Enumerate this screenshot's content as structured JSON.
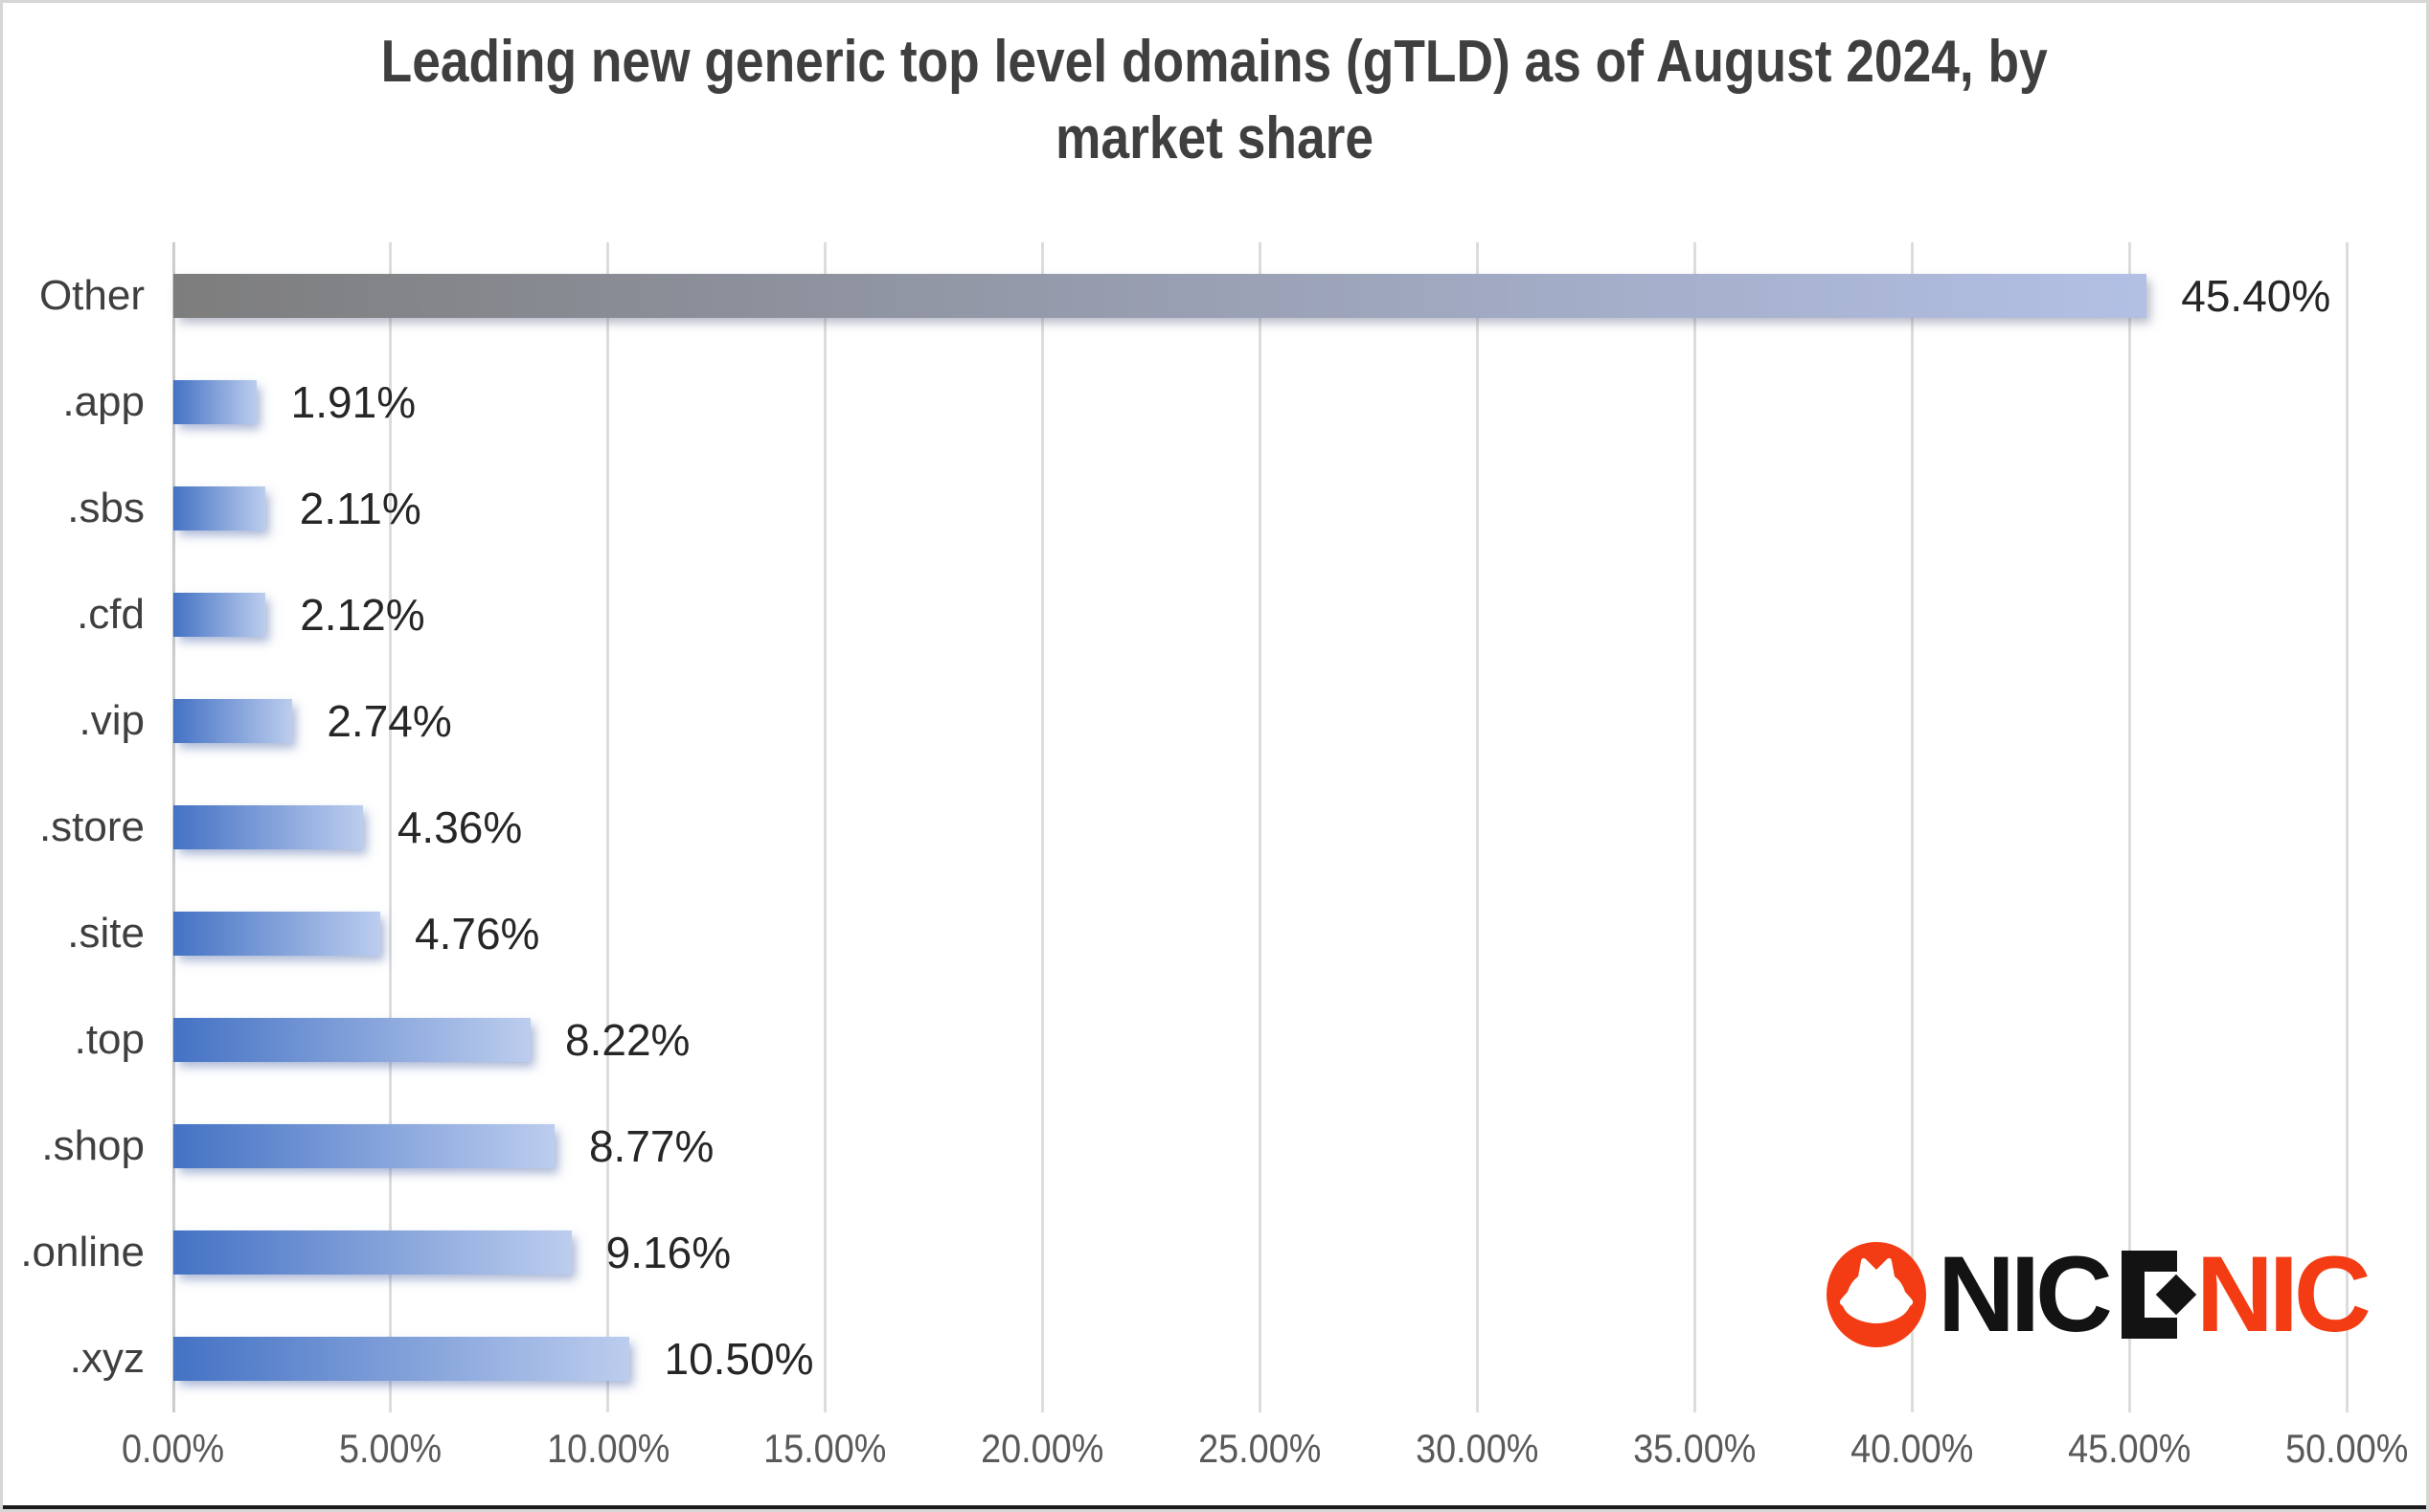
{
  "title": {
    "full": "Leading new generic top level domains (gTLD) as of August 2024, by market share",
    "line1": "Leading new generic top level domains (gTLD) as of August 2024, by",
    "line2": "market share"
  },
  "chart_data": {
    "type": "bar",
    "orientation": "horizontal",
    "title": "Leading new generic top level domains (gTLD) as of August 2024, by market share",
    "categories": [
      "Other",
      ".app",
      ".sbs",
      ".cfd",
      ".vip",
      ".store",
      ".site",
      ".top",
      ".shop",
      ".online",
      ".xyz"
    ],
    "values": [
      45.4,
      1.91,
      2.11,
      2.12,
      2.74,
      4.36,
      4.76,
      8.22,
      8.77,
      9.16,
      10.5
    ],
    "value_labels": [
      "45.40%",
      "1.91%",
      "2.11%",
      "2.12%",
      "2.74%",
      "4.36%",
      "4.76%",
      "8.22%",
      "8.77%",
      "9.16%",
      "10.50%"
    ],
    "xlabel": "",
    "ylabel": "",
    "xlim": [
      0,
      50
    ],
    "x_tick_labels": [
      "0.00%",
      "5.00%",
      "10.00%",
      "15.00%",
      "20.00%",
      "25.00%",
      "30.00%",
      "35.00%",
      "40.00%",
      "45.00%",
      "50.00%"
    ],
    "grid": true,
    "legend": "none",
    "colors": {
      "bar_gradient_start": "#4472c4",
      "bar_gradient_end": "#bccdee",
      "other_bar_gradient_start": "#7d7d7d",
      "other_bar_gradient_end": "#b3c0e5",
      "gridline": "#dddddd",
      "title_text": "#3f3f3f",
      "category_text": "#3f3f3f",
      "value_text": "#262626",
      "tick_text": "#595959"
    }
  },
  "logo": {
    "brand": "NICENIC",
    "black_part": "NICE",
    "black_render_prefix": "NIC",
    "orange_part": "NIC",
    "icon": "cat-icon",
    "orange_color": "#f43c14",
    "black_color": "#131313"
  }
}
